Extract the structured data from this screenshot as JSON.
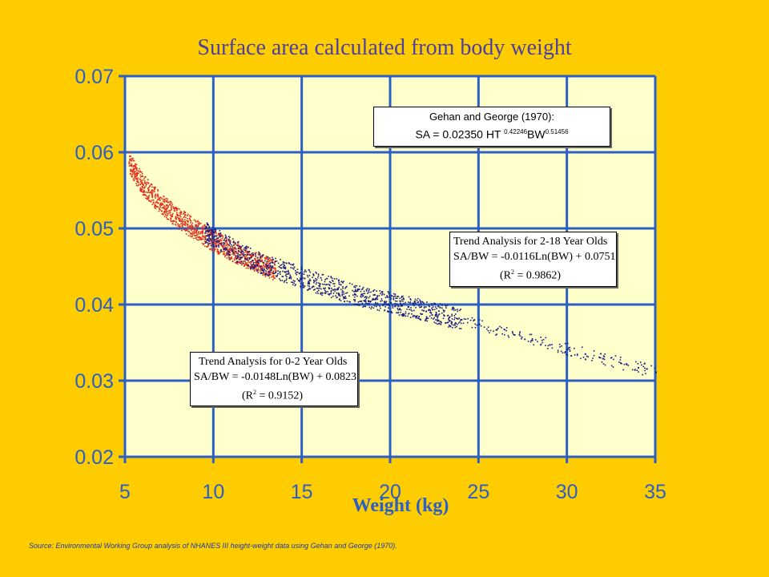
{
  "slide": {
    "title": "Surface area calculated from body weight",
    "source": "Source: Environmental Working Group analysis of NHANES III height-weight data using Gehan and George (1970)."
  },
  "annotations": {
    "gehan": {
      "line1": "Gehan and George (1970):",
      "line2_prefix": "SA = 0.02350 HT",
      "exp1": "0.42246",
      "mid": "BW",
      "exp2": "0.51456"
    },
    "trend_2_18": {
      "line1": "Trend Analysis for 2-18 Year Olds",
      "line2": "SA/BW = -0.0116Ln(BW) + 0.0751",
      "r2_prefix": "(R",
      "r2_sup": "2",
      "r2_suffix": " = 0.9862)"
    },
    "trend_0_2": {
      "line1": "Trend Analysis for 0-2 Year Olds",
      "line2": "SA/BW = -0.0148Ln(BW) + 0.0823",
      "r2_prefix": "(R",
      "r2_sup": "2",
      "r2_suffix": " = 0.9152)"
    }
  },
  "chart_data": {
    "type": "scatter",
    "title": "Surface area calculated from body weight",
    "xlabel": "Weight (kg)",
    "ylabel": "",
    "xlim": [
      5,
      35
    ],
    "ylim": [
      0.02,
      0.07
    ],
    "xticks": [
      "5",
      "10",
      "15",
      "20",
      "25",
      "30",
      "35"
    ],
    "yticks": [
      "0.02",
      "0.03",
      "0.04",
      "0.05",
      "0.06",
      "0.07"
    ],
    "grid": true,
    "colors": {
      "plot_bg": "#FFFFCC",
      "grid": "#2B5FC4",
      "axis_text": "#2B5FC4",
      "age_0_2": "#E0301E",
      "age_2_18": "#1A1A80"
    },
    "series": [
      {
        "color": "#E0301E",
        "points": [
          [
            5.2,
            0.0588
          ],
          [
            5.6,
            0.0572
          ],
          [
            6.0,
            0.0558
          ],
          [
            6.5,
            0.0545
          ],
          [
            7.0,
            0.0534
          ],
          [
            7.5,
            0.0524
          ],
          [
            8.0,
            0.0514
          ],
          [
            8.5,
            0.0506
          ],
          [
            9.0,
            0.0498
          ],
          [
            9.5,
            0.0491
          ],
          [
            10.0,
            0.0484
          ],
          [
            10.5,
            0.0478
          ],
          [
            11.0,
            0.0472
          ],
          [
            11.5,
            0.0466
          ],
          [
            12.0,
            0.0461
          ],
          [
            12.5,
            0.0455
          ],
          [
            13.0,
            0.045
          ],
          [
            13.5,
            0.0445
          ]
        ]
      },
      {
        "color": "#1A1A80",
        "points": [
          [
            9.5,
            0.0495
          ],
          [
            10.0,
            0.049
          ],
          [
            11.0,
            0.0474
          ],
          [
            12.0,
            0.0462
          ],
          [
            13.0,
            0.0452
          ],
          [
            14.0,
            0.0444
          ],
          [
            15.0,
            0.0436
          ],
          [
            16.0,
            0.0428
          ],
          [
            17.0,
            0.0421
          ],
          [
            18.0,
            0.0414
          ],
          [
            19.0,
            0.0408
          ],
          [
            20.0,
            0.0403
          ],
          [
            21.0,
            0.0398
          ],
          [
            22.0,
            0.0392
          ],
          [
            23.0,
            0.0387
          ],
          [
            24.0,
            0.0381
          ],
          [
            25.0,
            0.0375
          ],
          [
            26.0,
            0.0368
          ],
          [
            27.0,
            0.0361
          ],
          [
            28.0,
            0.0354
          ],
          [
            29.0,
            0.0348
          ],
          [
            30.0,
            0.0342
          ],
          [
            31.0,
            0.0336
          ],
          [
            32.0,
            0.033
          ],
          [
            33.0,
            0.0324
          ],
          [
            34.0,
            0.0318
          ],
          [
            35.0,
            0.0312
          ]
        ]
      }
    ]
  }
}
